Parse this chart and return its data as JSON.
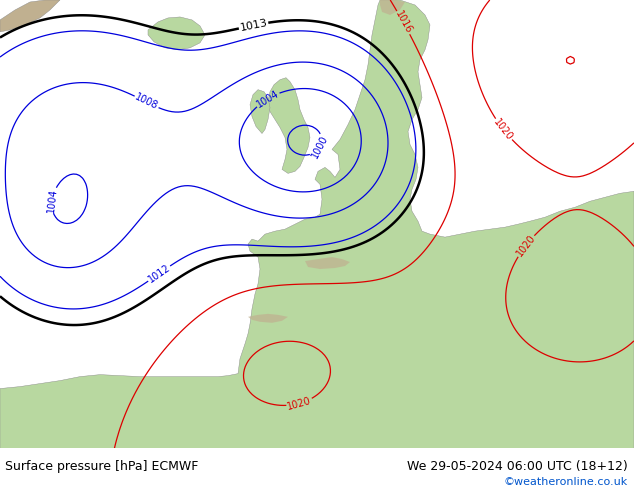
{
  "title_left": "Surface pressure [hPa] ECMWF",
  "title_right": "We 29-05-2024 06:00 UTC (18+12)",
  "copyright": "©weatheronline.co.uk",
  "bg_color": "#c8dce8",
  "land_color": "#b8d8a0",
  "mountain_color": "#c0b090",
  "text_color_black": "#000000",
  "text_color_blue": "#0000cc",
  "text_color_red": "#cc0000",
  "footer_bg": "#ffffff",
  "footer_fontsize": 9,
  "copyright_color": "#0055cc",
  "isobar_blue": "#0000dd",
  "isobar_red": "#dd0000",
  "isobar_black": "#000000"
}
